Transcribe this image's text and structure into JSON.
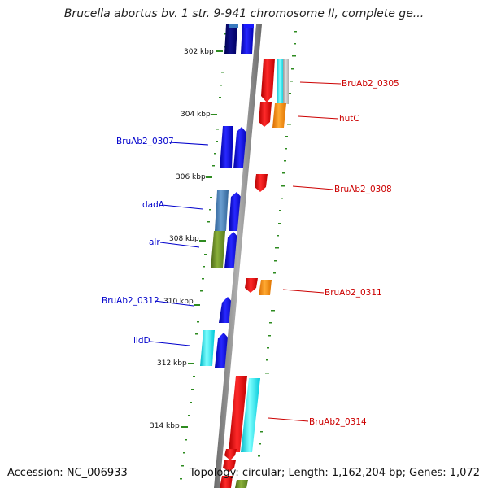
{
  "title": "Brucella abortus bv. 1 str. 9-941 chromosome II, complete ge...",
  "footer": {
    "accession": "Accession: NC_006933",
    "summary": "Topology: circular; Length: 1,162,204 bp; Genes: 1,072"
  },
  "scale_labels": [
    "302 kbp",
    "304 kbp",
    "306 kbp",
    "308 kbp",
    "310 kbp",
    "312 kbp",
    "314 kbp"
  ],
  "gene_labels_left": [
    "BruAb2_0307",
    "dadA",
    "alr",
    "BruAb2_0312",
    "lldD"
  ],
  "gene_labels_right": [
    "BruAb2_0305",
    "hutC",
    "BruAb2_0308",
    "BruAb2_0311",
    "BruAb2_0314"
  ],
  "colors": {
    "backbone": "#888888",
    "forward_blue": "#0a0adc",
    "steel_blue": "#4a7fb5",
    "olive": "#6b8e23",
    "cyan": "#00e5ee",
    "reverse_red": "#ee0000",
    "orange": "#ff8c00",
    "scale_tick": "#2e8b20",
    "label_left": "#0000cc",
    "label_right": "#cc0000"
  }
}
